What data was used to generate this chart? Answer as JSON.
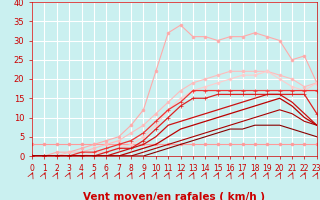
{
  "bg_color": "#caf0f0",
  "grid_color": "#ffffff",
  "xlabel": "Vent moyen/en rafales ( km/h )",
  "xlim": [
    0,
    23
  ],
  "ylim": [
    0,
    40
  ],
  "xticks": [
    0,
    1,
    2,
    3,
    4,
    5,
    6,
    7,
    8,
    9,
    10,
    11,
    12,
    13,
    14,
    15,
    16,
    17,
    18,
    19,
    20,
    21,
    22,
    23
  ],
  "yticks": [
    0,
    5,
    10,
    15,
    20,
    25,
    30,
    35,
    40
  ],
  "series": [
    {
      "x": [
        0,
        1,
        2,
        3,
        4,
        5,
        6,
        7,
        8,
        9,
        10,
        11,
        12,
        13,
        14,
        15,
        16,
        17,
        18,
        19,
        20,
        21,
        22,
        23
      ],
      "y": [
        3,
        3,
        3,
        3,
        3,
        3,
        3,
        3,
        3,
        3,
        3,
        3,
        3,
        3,
        3,
        3,
        3,
        3,
        3,
        3,
        3,
        3,
        3,
        3
      ],
      "color": "#ff9999",
      "marker": "o",
      "linewidth": 0.8,
      "markersize": 2.0
    },
    {
      "x": [
        0,
        1,
        2,
        3,
        4,
        5,
        6,
        7,
        8,
        9,
        10,
        11,
        12,
        13,
        14,
        15,
        16,
        17,
        18,
        19,
        20,
        21,
        22,
        23
      ],
      "y": [
        0,
        0,
        1,
        1,
        2,
        3,
        4,
        5,
        8,
        12,
        22,
        32,
        34,
        31,
        31,
        30,
        31,
        31,
        32,
        31,
        30,
        25,
        26,
        19
      ],
      "color": "#ffaaaa",
      "marker": "o",
      "linewidth": 0.8,
      "markersize": 2.0
    },
    {
      "x": [
        0,
        1,
        2,
        3,
        4,
        5,
        6,
        7,
        8,
        9,
        10,
        11,
        12,
        13,
        14,
        15,
        16,
        17,
        18,
        19,
        20,
        21,
        22,
        23
      ],
      "y": [
        0,
        0,
        0,
        1,
        1,
        2,
        3,
        4,
        6,
        8,
        11,
        14,
        17,
        19,
        20,
        21,
        22,
        22,
        22,
        22,
        21,
        20,
        18,
        19
      ],
      "color": "#ffbbbb",
      "marker": "o",
      "linewidth": 0.8,
      "markersize": 2.0
    },
    {
      "x": [
        0,
        1,
        2,
        3,
        4,
        5,
        6,
        7,
        8,
        9,
        10,
        11,
        12,
        13,
        14,
        15,
        16,
        17,
        18,
        19,
        20,
        21,
        22,
        23
      ],
      "y": [
        0,
        0,
        0,
        0,
        0,
        1,
        1,
        2,
        3,
        5,
        8,
        12,
        15,
        17,
        18,
        19,
        20,
        21,
        21,
        22,
        20,
        18,
        17,
        19
      ],
      "color": "#ffcccc",
      "marker": "o",
      "linewidth": 0.8,
      "markersize": 2.0
    },
    {
      "x": [
        0,
        1,
        2,
        3,
        4,
        5,
        6,
        7,
        8,
        9,
        10,
        11,
        12,
        13,
        14,
        15,
        16,
        17,
        18,
        19,
        20,
        21,
        22,
        23
      ],
      "y": [
        0,
        0,
        0,
        0,
        1,
        1,
        2,
        3,
        4,
        6,
        9,
        12,
        14,
        17,
        17,
        17,
        17,
        17,
        17,
        17,
        17,
        17,
        17,
        17
      ],
      "color": "#ee3333",
      "marker": "+",
      "linewidth": 0.9,
      "markersize": 3.5
    },
    {
      "x": [
        0,
        1,
        2,
        3,
        4,
        5,
        6,
        7,
        8,
        9,
        10,
        11,
        12,
        13,
        14,
        15,
        16,
        17,
        18,
        19,
        20,
        21,
        22,
        23
      ],
      "y": [
        0,
        0,
        0,
        0,
        0,
        0,
        1,
        2,
        2,
        4,
        7,
        10,
        13,
        15,
        15,
        16,
        16,
        16,
        16,
        16,
        16,
        16,
        16,
        11
      ],
      "color": "#dd2222",
      "marker": "+",
      "linewidth": 0.9,
      "markersize": 3.5
    },
    {
      "x": [
        0,
        1,
        2,
        3,
        4,
        5,
        6,
        7,
        8,
        9,
        10,
        11,
        12,
        13,
        14,
        15,
        16,
        17,
        18,
        19,
        20,
        21,
        22,
        23
      ],
      "y": [
        0,
        0,
        0,
        0,
        0,
        0,
        0,
        1,
        2,
        3,
        5,
        8,
        9,
        10,
        11,
        12,
        13,
        14,
        15,
        16,
        16,
        14,
        11,
        8
      ],
      "color": "#cc1111",
      "marker": null,
      "linewidth": 0.9,
      "markersize": 0
    },
    {
      "x": [
        0,
        1,
        2,
        3,
        4,
        5,
        6,
        7,
        8,
        9,
        10,
        11,
        12,
        13,
        14,
        15,
        16,
        17,
        18,
        19,
        20,
        21,
        22,
        23
      ],
      "y": [
        0,
        0,
        0,
        0,
        0,
        0,
        0,
        0,
        1,
        2,
        3,
        5,
        7,
        8,
        9,
        10,
        11,
        12,
        13,
        14,
        15,
        13,
        10,
        8
      ],
      "color": "#bb0000",
      "marker": null,
      "linewidth": 0.9,
      "markersize": 0
    },
    {
      "x": [
        0,
        1,
        2,
        3,
        4,
        5,
        6,
        7,
        8,
        9,
        10,
        11,
        12,
        13,
        14,
        15,
        16,
        17,
        18,
        19,
        20,
        21,
        22,
        23
      ],
      "y": [
        0,
        0,
        0,
        0,
        0,
        0,
        0,
        0,
        0,
        1,
        2,
        3,
        4,
        5,
        6,
        7,
        8,
        9,
        10,
        11,
        12,
        11,
        9,
        8
      ],
      "color": "#aa0000",
      "marker": null,
      "linewidth": 0.8,
      "markersize": 0
    },
    {
      "x": [
        0,
        1,
        2,
        3,
        4,
        5,
        6,
        7,
        8,
        9,
        10,
        11,
        12,
        13,
        14,
        15,
        16,
        17,
        18,
        19,
        20,
        21,
        22,
        23
      ],
      "y": [
        0,
        0,
        0,
        0,
        0,
        0,
        0,
        0,
        0,
        0,
        1,
        2,
        3,
        4,
        5,
        6,
        7,
        7,
        8,
        8,
        8,
        7,
        6,
        5
      ],
      "color": "#880000",
      "marker": null,
      "linewidth": 0.8,
      "markersize": 0
    }
  ],
  "arrow_color": "#cc0000",
  "xlabel_color": "#cc0000",
  "xlabel_fontsize": 7.5,
  "tick_color": "#cc0000",
  "tick_fontsize": 6
}
